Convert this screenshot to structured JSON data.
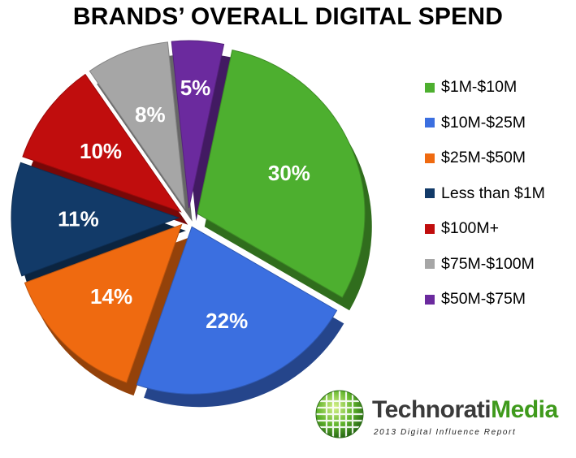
{
  "chart_data": {
    "type": "pie",
    "title": "BRANDS’ OVERALL DIGITAL SPEND",
    "slices": [
      {
        "label": "$1M-$10M",
        "value": 30,
        "display": "30%",
        "color": "#4daf2f"
      },
      {
        "label": "$10M-$25M",
        "value": 22,
        "display": "22%",
        "color": "#3b6fe0"
      },
      {
        "label": "$25M-$50M",
        "value": 14,
        "display": "14%",
        "color": "#ef6a10"
      },
      {
        "label": "Less than $1M",
        "value": 11,
        "display": "11%",
        "color": "#123a68"
      },
      {
        "label": "$100M+",
        "value": 10,
        "display": "10%",
        "color": "#c00d0d"
      },
      {
        "label": "$75M-$100M",
        "value": 8,
        "display": "8%",
        "color": "#a6a6a6"
      },
      {
        "label": "$50M-$75M",
        "value": 5,
        "display": "5%",
        "color": "#6b2a9e"
      }
    ],
    "legend_position": "right"
  },
  "logo": {
    "name_part1": "Technorati",
    "name_part2": "Media",
    "subtitle": "2013 Digital Influence Report"
  }
}
